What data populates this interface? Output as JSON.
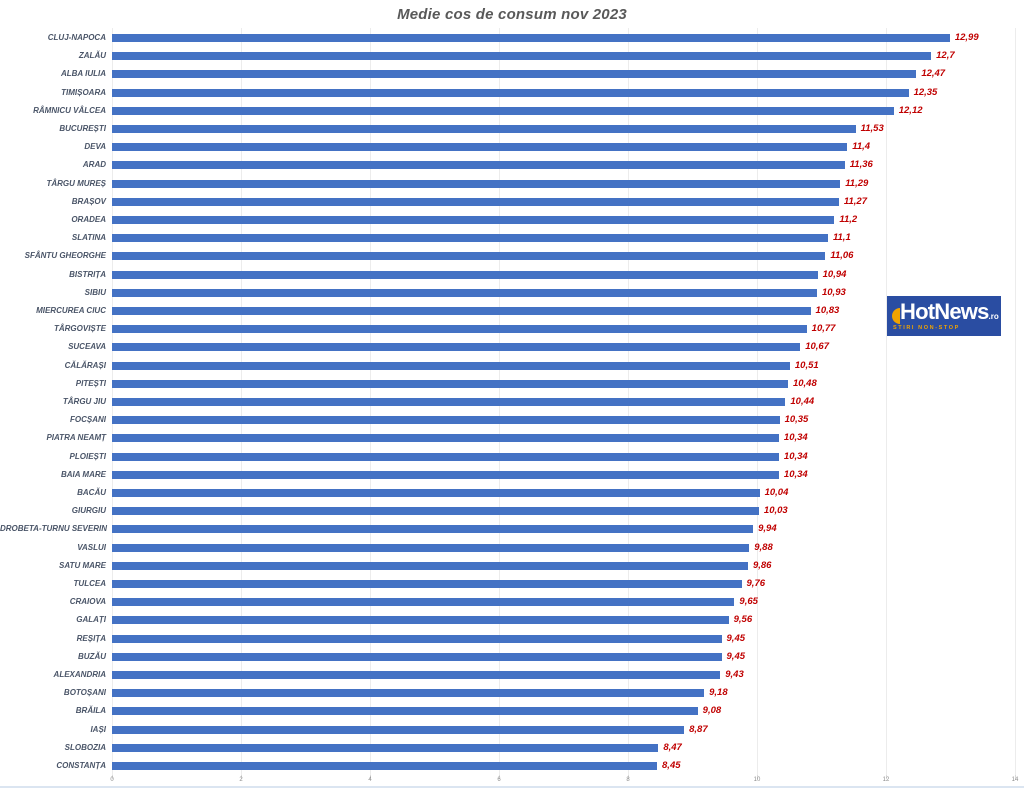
{
  "title": "Medie cos de consum nov 2023",
  "logo": {
    "brand": "HotNews",
    "tld": ".ro",
    "tagline": "STIRI NON-STOP"
  },
  "colors": {
    "bar": "#4472c4",
    "value_label": "#c00000",
    "category_label": "#4a5568",
    "title": "#595959",
    "gridline": "#ececec",
    "tick_label": "#8c8c8c",
    "logo_bg": "#2a4da2",
    "logo_accent": "#f0a300",
    "bottom_rule": "#dbe5f1"
  },
  "chart_data": {
    "type": "bar",
    "orientation": "horizontal",
    "title": "Medie cos de consum nov 2023",
    "xlabel": "",
    "ylabel": "",
    "xlim": [
      0,
      14
    ],
    "x_ticks": [
      0,
      2,
      4,
      6,
      8,
      10,
      12,
      14
    ],
    "grid": true,
    "legend": false,
    "categories": [
      "CLUJ-NAPOCA",
      "ZALĂU",
      "ALBA IULIA",
      "TIMIȘOARA",
      "RÂMNICU VÂLCEA",
      "BUCUREȘTI",
      "DEVA",
      "ARAD",
      "TÂRGU MUREȘ",
      "BRAȘOV",
      "ORADEA",
      "SLATINA",
      "SFÂNTU GHEORGHE",
      "BISTRIȚA",
      "SIBIU",
      "MIERCUREA CIUC",
      "TÂRGOVIȘTE",
      "SUCEAVA",
      "CĂLĂRAȘI",
      "PITEȘTI",
      "TÂRGU JIU",
      "FOCȘANI",
      "PIATRA NEAMȚ",
      "PLOIEȘTI",
      "BAIA MARE",
      "BACĂU",
      "GIURGIU",
      "DROBETA-TURNU SEVERIN",
      "VASLUI",
      "SATU MARE",
      "TULCEA",
      "CRAIOVA",
      "GALAȚI",
      "REȘIȚA",
      "BUZĂU",
      "ALEXANDRIA",
      "BOTOȘANI",
      "BRĂILA",
      "IAȘI",
      "SLOBOZIA",
      "CONSTANȚA"
    ],
    "values": [
      12.99,
      12.7,
      12.47,
      12.35,
      12.12,
      11.53,
      11.4,
      11.36,
      11.29,
      11.27,
      11.2,
      11.1,
      11.06,
      10.94,
      10.93,
      10.83,
      10.77,
      10.67,
      10.51,
      10.48,
      10.44,
      10.35,
      10.34,
      10.34,
      10.34,
      10.04,
      10.03,
      9.94,
      9.88,
      9.86,
      9.76,
      9.65,
      9.56,
      9.45,
      9.45,
      9.43,
      9.18,
      9.08,
      8.87,
      8.47,
      8.45
    ],
    "value_labels": [
      "12,99",
      "12,7",
      "12,47",
      "12,35",
      "12,12",
      "11,53",
      "11,4",
      "11,36",
      "11,29",
      "11,27",
      "11,2",
      "11,1",
      "11,06",
      "10,94",
      "10,93",
      "10,83",
      "10,77",
      "10,67",
      "10,51",
      "10,48",
      "10,44",
      "10,35",
      "10,34",
      "10,34",
      "10,34",
      "10,04",
      "10,03",
      "9,94",
      "9,88",
      "9,86",
      "9,76",
      "9,65",
      "9,56",
      "9,45",
      "9,45",
      "9,43",
      "9,18",
      "9,08",
      "8,87",
      "8,47",
      "8,45"
    ]
  }
}
